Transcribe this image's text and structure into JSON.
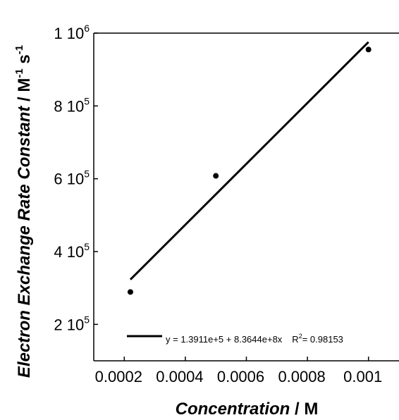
{
  "chart_data": {
    "type": "scatter",
    "x_label": {
      "italic": "Concentration",
      "unit": " / M"
    },
    "y_label": {
      "italic": "Electron Exchange Rate Constant",
      "unit": " / M",
      "exp1": "-1",
      "s": " s",
      "exp2": "-1"
    },
    "x": [
      0.00022,
      0.0005,
      0.001
    ],
    "values": [
      289000,
      608000,
      955000
    ],
    "color": "#000000",
    "fit": {
      "x": [
        0.00022,
        0.001
      ],
      "values": [
        323130,
        975550
      ],
      "equation": "y = 1.3911e+5 + 8.3644e+8x",
      "r_label": "R",
      "r_exp": "2",
      "r_value": "= 0.98153"
    },
    "xlim": [
      0.0001,
      0.0011
    ],
    "ylim": [
      100000,
      1000000
    ],
    "xticks": [
      0.0002,
      0.0004,
      0.0006,
      0.0008,
      0.001
    ],
    "yticks": [
      {
        "value": 200000,
        "label": "2 10",
        "exponent": "5"
      },
      {
        "value": 400000,
        "label": "4 10",
        "exponent": "5"
      },
      {
        "value": 600000,
        "label": "6 10",
        "exponent": "5"
      },
      {
        "value": 800000,
        "label": "8 10",
        "exponent": "5"
      },
      {
        "value": 1000000,
        "label": "1 10",
        "exponent": "6"
      }
    ]
  }
}
